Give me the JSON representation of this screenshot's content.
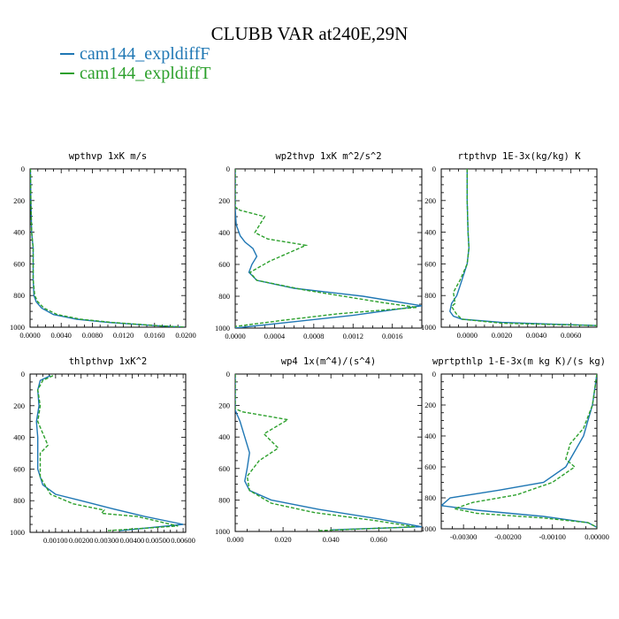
{
  "figure": {
    "title": "CLUBB VAR at240E,29N"
  },
  "legend": [
    {
      "label": "cam144_expldiffF",
      "color": "#1f77b4"
    },
    {
      "label": "cam144_expldiffT",
      "color": "#2ca02c"
    }
  ],
  "chart_data": [
    {
      "type": "line",
      "title": "wpthvp  1xK m/s",
      "xlim": [
        0,
        0.02
      ],
      "ylim": [
        0,
        1000
      ],
      "xticks": [
        "0.0000",
        "0.0040",
        "0.0080",
        "0.0120",
        "0.0160",
        "0.0200"
      ],
      "xtick_values": [
        0,
        0.004,
        0.008,
        0.012,
        0.016,
        0.02
      ],
      "yticks": [
        "0",
        "200",
        "400",
        "600",
        "800",
        "1000"
      ],
      "series": [
        {
          "name": "cam144_expldiffF",
          "x": [
            5e-05,
            0.0001,
            0.0002,
            0.0003,
            0.0004,
            0.0004,
            0.0004,
            0.0005,
            0.0008,
            0.0015,
            0.003,
            0.006,
            0.01,
            0.016,
            0.0198
          ],
          "y": [
            0,
            200,
            400,
            450,
            500,
            600,
            700,
            800,
            840,
            880,
            920,
            950,
            970,
            990,
            1000
          ]
        },
        {
          "name": "cam144_expldiffT",
          "x": [
            5e-05,
            0.0001,
            0.0002,
            0.0003,
            0.0004,
            0.0004,
            0.0004,
            0.0006,
            0.001,
            0.0018,
            0.0035,
            0.0065,
            0.0105,
            0.0162,
            0.0198
          ],
          "y": [
            0,
            200,
            400,
            450,
            500,
            600,
            700,
            800,
            840,
            880,
            920,
            950,
            970,
            990,
            1000
          ]
        }
      ]
    },
    {
      "type": "line",
      "title": "wp2thvp  1xK m^2/s^2",
      "xlim": [
        0,
        0.0019
      ],
      "ylim": [
        0,
        1000
      ],
      "xticks": [
        "0.0000",
        "0.0004",
        "0.0008",
        "0.0012",
        "0.0016"
      ],
      "xtick_values": [
        0,
        0.0004,
        0.0008,
        0.0012,
        0.0016
      ],
      "yticks": [
        "0",
        "200",
        "400",
        "600",
        "800",
        "1000"
      ],
      "series": [
        {
          "name": "cam144_expldiffF",
          "x": [
            0,
            0,
            1e-05,
            5e-05,
            0.0001,
            0.00018,
            0.00022,
            0.00017,
            0.00014,
            0.00022,
            0.0006,
            0.0013,
            0.0019,
            0.0012,
            0.0006,
            0
          ],
          "y": [
            0,
            250,
            350,
            420,
            460,
            500,
            550,
            600,
            650,
            700,
            750,
            800,
            860,
            920,
            960,
            1000
          ]
        },
        {
          "name": "cam144_expldiffT",
          "x": [
            0,
            0,
            5e-05,
            0.0003,
            0.0002,
            0.00033,
            0.00072,
            0.00035,
            0.00015,
            0.00022,
            0.0007,
            0.0015,
            0.00185,
            0.00105,
            0.0005,
            0
          ],
          "y": [
            0,
            240,
            260,
            300,
            400,
            440,
            480,
            580,
            650,
            700,
            760,
            840,
            870,
            910,
            950,
            990
          ]
        }
      ]
    },
    {
      "type": "line",
      "title": "rtpthvp  1E-3x(kg/kg) K",
      "xlim": [
        -0.0015,
        0.0075
      ],
      "ylim": [
        0,
        1000
      ],
      "xticks": [
        "0.0000",
        "0.0020",
        "0.0040",
        "0.0060"
      ],
      "xtick_values": [
        0,
        0.002,
        0.004,
        0.006
      ],
      "yticks": [
        "0",
        "200",
        "400",
        "600",
        "800",
        "1000"
      ],
      "series": [
        {
          "name": "cam144_expldiffF",
          "x": [
            0,
            0,
            5e-05,
            0.0001,
            0,
            -0.0003,
            -0.0006,
            -0.0009,
            -0.001,
            -0.0008,
            -0.0003,
            0.002,
            0.0075
          ],
          "y": [
            0,
            200,
            400,
            500,
            600,
            700,
            800,
            850,
            900,
            930,
            950,
            970,
            990
          ]
        },
        {
          "name": "cam144_expldiffT",
          "x": [
            0,
            0,
            5e-05,
            0.0001,
            0,
            -0.0004,
            -0.0008,
            -0.0007,
            -0.0009,
            -0.0006,
            -0.0003,
            0.002,
            0.0075
          ],
          "y": [
            0,
            200,
            400,
            500,
            600,
            700,
            780,
            850,
            870,
            920,
            950,
            975,
            990
          ]
        }
      ]
    },
    {
      "type": "line",
      "title": "thlpthvp  1xK^2",
      "xlim": [
        0,
        0.0061
      ],
      "ylim": [
        0,
        1000
      ],
      "xticks": [
        "0.00100",
        "0.00200",
        "0.00300",
        "0.00400",
        "0.00500",
        "0.00600"
      ],
      "xtick_values": [
        0.001,
        0.002,
        0.003,
        0.004,
        0.005,
        0.006
      ],
      "yticks": [
        "0",
        "200",
        "400",
        "600",
        "800",
        "1000"
      ],
      "series": [
        {
          "name": "cam144_expldiffF",
          "x": [
            0.0008,
            0.0004,
            0.0003,
            0.00035,
            0.00025,
            0.0003,
            0.0003,
            0.0005,
            0.001,
            0.002,
            0.0032,
            0.0045,
            0.006,
            0.0035
          ],
          "y": [
            10,
            40,
            100,
            200,
            300,
            400,
            600,
            700,
            760,
            800,
            850,
            900,
            950,
            990
          ]
        },
        {
          "name": "cam144_expldiffT",
          "x": [
            0.0009,
            0.0005,
            0.0003,
            0.0004,
            0.0003,
            0.0007,
            0.0004,
            0.0004,
            0.0008,
            0.0017,
            0.0029,
            0.0028,
            0.0042,
            0.0058,
            0.003
          ],
          "y": [
            10,
            40,
            100,
            200,
            300,
            450,
            500,
            650,
            760,
            820,
            860,
            880,
            900,
            960,
            990
          ]
        }
      ]
    },
    {
      "type": "line",
      "title": "wp4  1x(m^4)/(s^4)",
      "xlim": [
        0,
        0.078
      ],
      "ylim": [
        0,
        1000
      ],
      "xticks": [
        "0.000",
        "0.020",
        "0.040",
        "0.060"
      ],
      "xtick_values": [
        0,
        0.02,
        0.04,
        0.06
      ],
      "yticks": [
        "0",
        "200",
        "400",
        "600",
        "800",
        "1000"
      ],
      "series": [
        {
          "name": "cam144_expldiffF",
          "x": [
            0,
            0,
            0.002,
            0.004,
            0.006,
            0.005,
            0.004,
            0.006,
            0.015,
            0.035,
            0.06,
            0.078,
            0.04
          ],
          "y": [
            0,
            230,
            300,
            400,
            500,
            600,
            680,
            740,
            800,
            860,
            920,
            970,
            990
          ]
        },
        {
          "name": "cam144_expldiffT",
          "x": [
            0,
            0,
            0.003,
            0.022,
            0.012,
            0.018,
            0.01,
            0.005,
            0.006,
            0.015,
            0.033,
            0.058,
            0.075,
            0.035
          ],
          "y": [
            0,
            220,
            240,
            290,
            380,
            470,
            550,
            650,
            740,
            820,
            880,
            930,
            970,
            995
          ]
        }
      ]
    },
    {
      "type": "line",
      "title": "wprtpthlp  1-E-3x(m kg K)/(s kg)",
      "xlim": [
        -0.0035,
        0
      ],
      "ylim": [
        0,
        1000
      ],
      "xticks": [
        "-0.00300",
        "-0.00200",
        "-0.00100",
        "0.00000"
      ],
      "xtick_values": [
        -0.003,
        -0.002,
        -0.001,
        0
      ],
      "yticks": [
        "0",
        "200",
        "400",
        "600",
        "800",
        "1000"
      ],
      "series": [
        {
          "name": "cam144_expldiffF",
          "x": [
            0,
            -0.0001,
            -0.0002,
            -0.0003,
            -0.0005,
            -0.0007,
            -0.0012,
            -0.0022,
            -0.0033,
            -0.0035,
            -0.0027,
            -0.0012,
            -0.0002,
            0
          ],
          "y": [
            0,
            200,
            300,
            400,
            500,
            600,
            700,
            750,
            800,
            850,
            880,
            920,
            960,
            990
          ]
        },
        {
          "name": "cam144_expldiffT",
          "x": [
            0,
            -0.0001,
            -0.0003,
            -0.0006,
            -0.0007,
            -0.0005,
            -0.001,
            -0.0018,
            -0.0028,
            -0.0032,
            -0.0027,
            -0.0012,
            -0.0002,
            0
          ],
          "y": [
            0,
            200,
            350,
            450,
            550,
            600,
            700,
            780,
            830,
            870,
            900,
            930,
            960,
            990
          ]
        }
      ]
    }
  ]
}
